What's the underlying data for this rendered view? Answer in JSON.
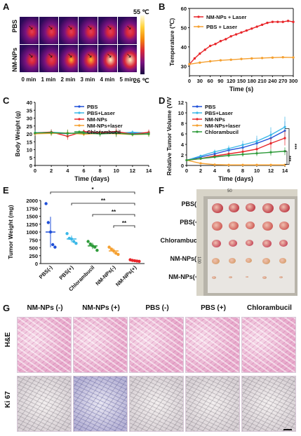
{
  "panels": {
    "A": {
      "letter": "A",
      "rows": [
        "PBS",
        "NM-NPs"
      ],
      "times": [
        "0 min",
        "1 min",
        "2 min",
        "3 min",
        "4 min",
        "5 min"
      ],
      "colorbar_max": "55 ℃",
      "colorbar_min": "26 ℃"
    },
    "B": {
      "letter": "B"
    },
    "C": {
      "letter": "C"
    },
    "D": {
      "letter": "D"
    },
    "E": {
      "letter": "E"
    },
    "F": {
      "letter": "F",
      "rows": [
        "PBS(-)",
        "PBS(+)",
        "Chlorambucil",
        "NM-NPs(-)",
        "NM-NPs(+)"
      ],
      "ruler_marks": [
        "50",
        "100"
      ]
    },
    "G": {
      "letter": "G",
      "columns": [
        "NM-NPs (-)",
        "NM-NPs (+)",
        "PBS (-)",
        "PBS (+)",
        "Chlorambucil"
      ],
      "rows": [
        "H&E",
        "Ki 67"
      ]
    }
  },
  "chart_data": [
    {
      "id": "B",
      "type": "line",
      "xlabel": "Time (s)",
      "ylabel": "Temperature (℃)",
      "xlim": [
        0,
        300
      ],
      "ylim": [
        25,
        60
      ],
      "xticks": [
        0,
        30,
        60,
        90,
        120,
        150,
        180,
        210,
        240,
        270,
        300
      ],
      "yticks": [
        30,
        40,
        50,
        60
      ],
      "legend": "top-left",
      "series": [
        {
          "name": "NM-NPs + Laser",
          "color": "#e8262a",
          "x": [
            0,
            15,
            30,
            45,
            60,
            75,
            90,
            105,
            120,
            135,
            150,
            165,
            180,
            195,
            210,
            225,
            240,
            255,
            270,
            285,
            300
          ],
          "y": [
            31,
            34,
            36.5,
            38.5,
            40.5,
            41.5,
            43,
            44,
            45.5,
            46.5,
            47.5,
            48.5,
            49.5,
            50.5,
            51.5,
            52.5,
            53,
            53,
            53,
            53.5,
            53
          ]
        },
        {
          "name": "PBS + Laser",
          "color": "#f5a030",
          "x": [
            0,
            30,
            60,
            90,
            120,
            150,
            180,
            210,
            240,
            270,
            300
          ],
          "y": [
            31,
            31.8,
            32.5,
            33,
            33.3,
            33.7,
            34,
            34.2,
            34.4,
            34.6,
            34.5
          ]
        }
      ]
    },
    {
      "id": "C",
      "type": "line",
      "xlabel": "Time (days)",
      "ylabel": "Body Weight (g)",
      "xlim": [
        0,
        14
      ],
      "ylim": [
        0,
        40
      ],
      "xticks": [
        0,
        2,
        4,
        6,
        8,
        10,
        12,
        14
      ],
      "yticks": [
        0,
        5,
        10,
        15,
        20,
        25,
        30,
        35,
        40
      ],
      "legend": "top-right",
      "series": [
        {
          "name": "PBS",
          "color": "#1f4fd8",
          "x": [
            0,
            2,
            4,
            6,
            8,
            10,
            12,
            14
          ],
          "y": [
            20.3,
            20.5,
            20.2,
            20.8,
            20.4,
            20.9,
            20.3,
            20.6
          ]
        },
        {
          "name": "PBS+Laser",
          "color": "#3bb8e8",
          "x": [
            0,
            2,
            4,
            6,
            8,
            10,
            12,
            14
          ],
          "y": [
            20.8,
            21,
            20.5,
            20.2,
            20.9,
            20.4,
            21,
            20.5
          ]
        },
        {
          "name": "NM-NPs",
          "color": "#e8262a",
          "x": [
            0,
            2,
            4,
            6,
            8,
            10,
            12,
            14
          ],
          "y": [
            20.5,
            21.2,
            18.5,
            21.5,
            20.8,
            21.5,
            19.8,
            21
          ]
        },
        {
          "name": "NM-NPs+laser",
          "color": "#f5a030",
          "x": [
            0,
            2,
            4,
            6,
            8,
            10,
            12,
            14
          ],
          "y": [
            20.1,
            20.3,
            20.6,
            19.8,
            20.3,
            20.1,
            19.6,
            19.8
          ]
        },
        {
          "name": "Chlorambucil",
          "color": "#2e9b3a",
          "x": [
            0,
            2,
            4,
            6,
            8,
            10,
            12,
            14
          ],
          "y": [
            20.6,
            20.8,
            20.3,
            20.6,
            20,
            20.5,
            19.7,
            20
          ]
        }
      ]
    },
    {
      "id": "D",
      "type": "line",
      "xlabel": "Time (days)",
      "ylabel": "Relative Tumor Volume (V/V₀)",
      "xlim": [
        0,
        14
      ],
      "ylim": [
        0,
        12
      ],
      "xticks": [
        0,
        2,
        4,
        6,
        8,
        10,
        12,
        14
      ],
      "yticks": [
        0,
        2,
        4,
        6,
        8,
        10,
        12
      ],
      "legend": "top-left",
      "annotations": [
        "***",
        "***"
      ],
      "series": [
        {
          "name": "PBS",
          "color": "#1f4fd8",
          "x": [
            0,
            2,
            4,
            6,
            8,
            10,
            12,
            14
          ],
          "y": [
            1,
            1.6,
            2.2,
            2.9,
            3.4,
            4.2,
            5.2,
            6.6
          ]
        },
        {
          "name": "PBS+Laser",
          "color": "#3bb8e8",
          "x": [
            0,
            2,
            4,
            6,
            8,
            10,
            12,
            14
          ],
          "y": [
            1,
            1.8,
            2.6,
            3.2,
            3.9,
            4.6,
            5.8,
            7.3
          ]
        },
        {
          "name": "NM-NPs",
          "color": "#e8262a",
          "x": [
            0,
            2,
            4,
            6,
            8,
            10,
            12,
            14
          ],
          "y": [
            1,
            1.3,
            1.8,
            2.2,
            2.6,
            3.1,
            4.2,
            5.2
          ]
        },
        {
          "name": "NM-NPs+laser",
          "color": "#f5a030",
          "x": [
            0,
            2,
            4,
            6,
            8,
            10,
            12,
            14
          ],
          "y": [
            1,
            0.4,
            0.15,
            0.1,
            0.1,
            0.1,
            0.1,
            0.1
          ]
        },
        {
          "name": "Chlorambucil",
          "color": "#2e9b3a",
          "x": [
            0,
            2,
            4,
            6,
            8,
            10,
            12,
            14
          ],
          "y": [
            1,
            1.3,
            1.6,
            1.9,
            2.1,
            2.3,
            2.5,
            2.7
          ]
        }
      ]
    },
    {
      "id": "E",
      "type": "scatter",
      "ylabel": "Tumor Weight (mg)",
      "ylim": [
        0,
        2000
      ],
      "yticks": [
        0,
        250,
        500,
        750,
        1000,
        1250,
        1500,
        1750,
        2000
      ],
      "categories": [
        "PBS(-)",
        "PBS(+)",
        "Chlorambucil",
        "NM-NPs(-)",
        "NM-NPs(+)"
      ],
      "colors": [
        "#1f4fd8",
        "#3bb8e8",
        "#2e9b3a",
        "#f5a030",
        "#e8262a"
      ],
      "points": [
        [
          1900,
          1300,
          1000,
          600,
          520
        ],
        [
          950,
          800,
          780,
          700,
          640
        ],
        [
          700,
          620,
          560,
          520,
          420
        ],
        [
          520,
          460,
          400,
          330,
          290
        ],
        [
          120,
          100,
          90,
          80,
          70
        ]
      ],
      "means": [
        1000,
        780,
        560,
        400,
        90
      ],
      "significance": [
        "*",
        "**",
        "**",
        "**"
      ]
    }
  ]
}
